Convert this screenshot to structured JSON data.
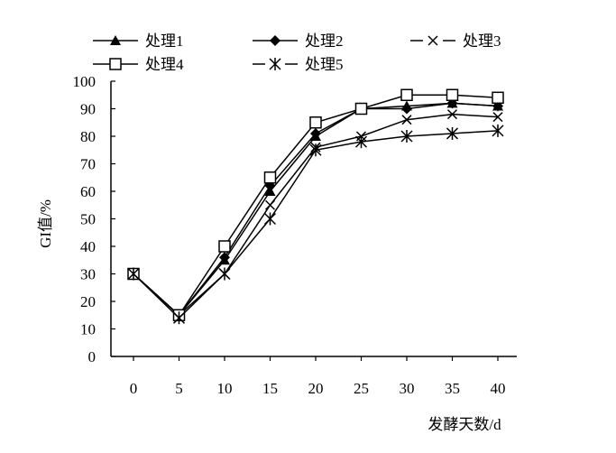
{
  "chart_data": {
    "type": "line",
    "title": "",
    "xlabel": "发酵天数/d",
    "ylabel": "GI值/%",
    "x": [
      0,
      5,
      10,
      15,
      20,
      25,
      30,
      35,
      40
    ],
    "xlim": [
      0,
      40
    ],
    "ylim": [
      0,
      100
    ],
    "yticks": [
      0,
      10,
      20,
      30,
      40,
      50,
      60,
      70,
      80,
      90,
      100
    ],
    "grid": false,
    "legend_position": "top",
    "series": [
      {
        "name": "处理1",
        "marker": "triangle",
        "values": [
          30,
          15,
          35,
          60,
          80,
          90,
          91,
          92,
          91
        ]
      },
      {
        "name": "处理2",
        "marker": "diamond",
        "values": [
          30,
          15,
          36,
          62,
          81,
          90,
          90,
          92,
          91
        ]
      },
      {
        "name": "处理3",
        "marker": "x",
        "values": [
          30,
          15,
          30,
          55,
          76,
          80,
          86,
          88,
          87
        ]
      },
      {
        "name": "处理4",
        "marker": "square",
        "values": [
          30,
          15,
          40,
          65,
          85,
          90,
          95,
          95,
          94
        ]
      },
      {
        "name": "处理5",
        "marker": "star",
        "values": [
          30,
          14,
          30,
          50,
          75,
          78,
          80,
          81,
          82
        ]
      }
    ]
  }
}
